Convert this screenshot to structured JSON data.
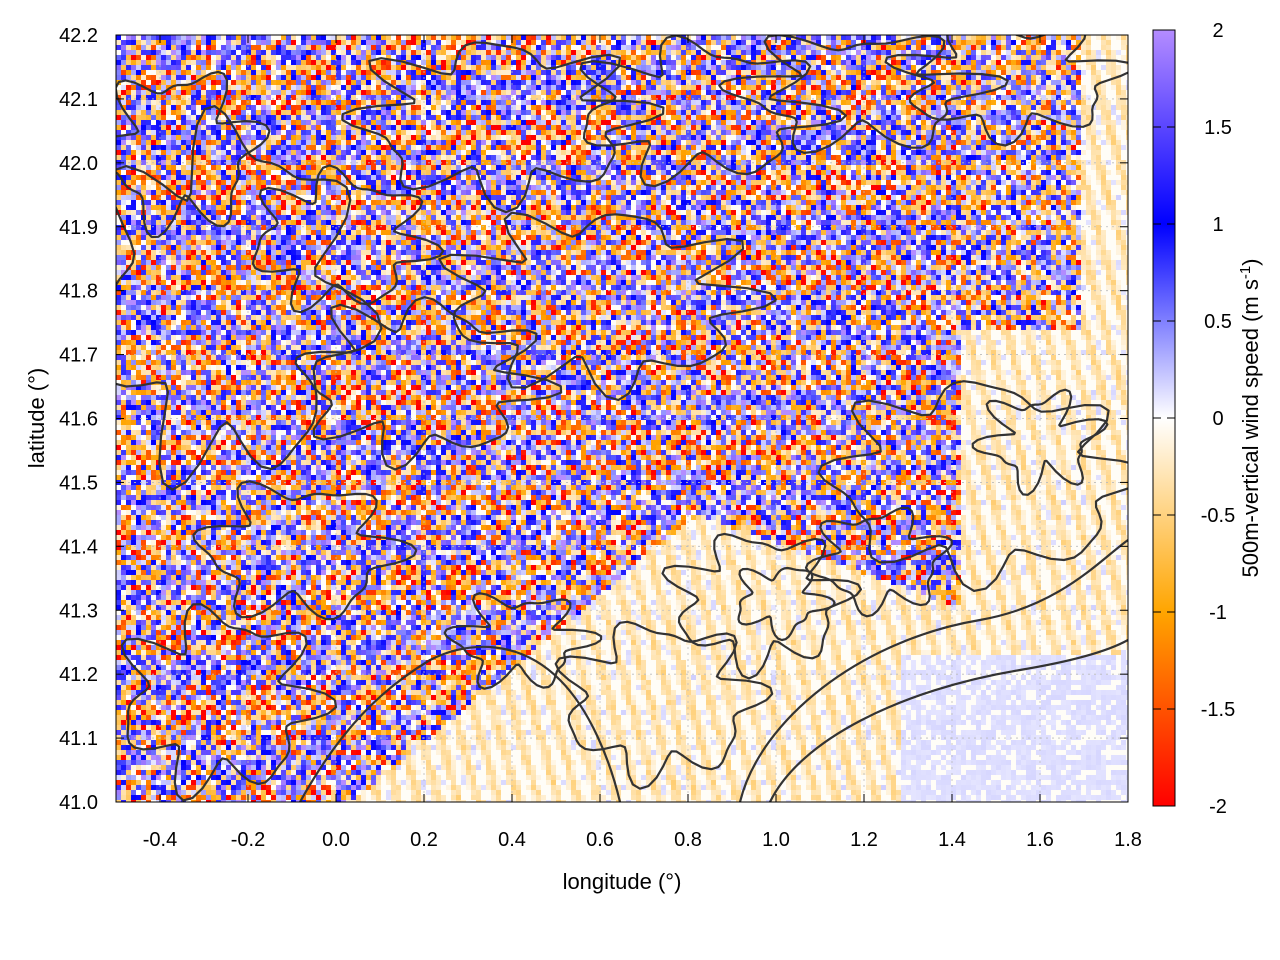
{
  "chart_data": {
    "type": "heatmap",
    "title": "",
    "xlabel": "longitude (°)",
    "ylabel": "latitude (°)",
    "colorbar_label": "500m-vertical wind speed (m s",
    "colorbar_label_sup": "-1",
    "colorbar_label_end": ")",
    "xlim": [
      -0.5,
      1.8
    ],
    "ylim": [
      41.0,
      42.2
    ],
    "clim": [
      -2,
      2
    ],
    "x_ticks": [
      -0.4,
      -0.2,
      0.0,
      0.2,
      0.4,
      0.6,
      0.8,
      1.0,
      1.2,
      1.4,
      1.6,
      1.8
    ],
    "x_tick_labels": [
      "-0.4",
      "-0.2",
      "0.0",
      "0.2",
      "0.4",
      "0.6",
      "0.8",
      "1.0",
      "1.2",
      "1.4",
      "1.6",
      "1.8"
    ],
    "y_ticks": [
      41.0,
      41.1,
      41.2,
      41.3,
      41.4,
      41.5,
      41.6,
      41.7,
      41.8,
      41.9,
      42.0,
      42.1,
      42.2
    ],
    "y_tick_labels": [
      "41.0",
      "41.1",
      "41.2",
      "41.3",
      "41.4",
      "41.5",
      "41.6",
      "41.7",
      "41.8",
      "41.9",
      "42.0",
      "42.1",
      "42.2"
    ],
    "colorbar_ticks": [
      -2,
      -1.5,
      -1,
      -0.5,
      0,
      0.5,
      1,
      1.5,
      2
    ],
    "colorbar_tick_labels": [
      "-2",
      "-1.5",
      "-1",
      "-0.5",
      "0",
      "0.5",
      "1",
      "1.5",
      "2"
    ],
    "colormap": [
      {
        "value": -2,
        "color": "#ff0000"
      },
      {
        "value": -1,
        "color": "#ffa500"
      },
      {
        "value": 0,
        "color": "#ffffff"
      },
      {
        "value": 1,
        "color": "#0000ff"
      },
      {
        "value": 2,
        "color": "#b48cff"
      }
    ],
    "grid": true,
    "overlay": "terrain contour lines",
    "contour_color": "#333333"
  }
}
